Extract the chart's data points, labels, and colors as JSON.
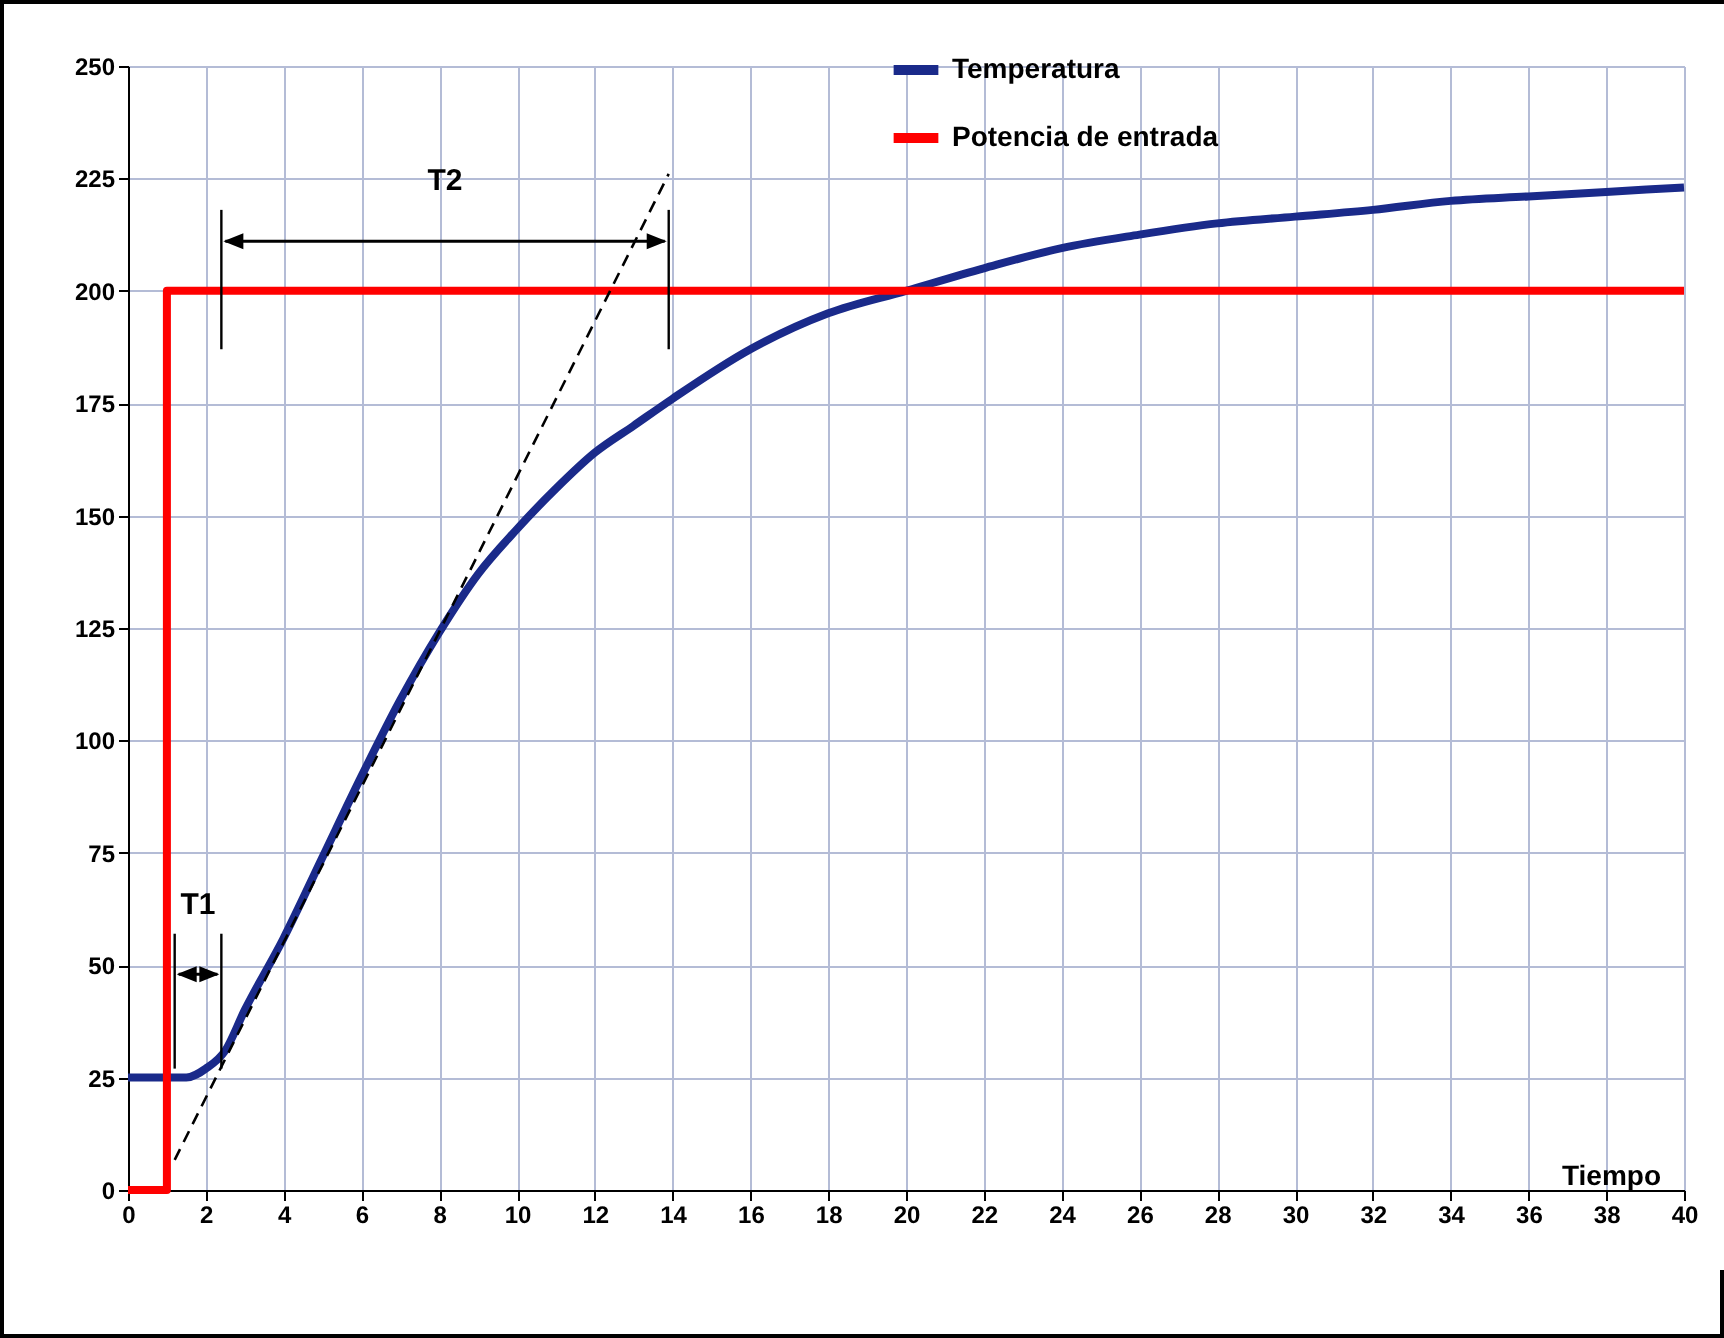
{
  "chart_data": {
    "type": "line",
    "xlabel": "Tiempo",
    "xlim": [
      0,
      40
    ],
    "xticks": [
      0,
      2,
      4,
      6,
      8,
      10,
      12,
      14,
      16,
      18,
      20,
      22,
      24,
      26,
      28,
      30,
      32,
      34,
      36,
      38,
      40
    ],
    "ylim": [
      0,
      250
    ],
    "yticks": [
      0,
      25,
      50,
      75,
      100,
      125,
      150,
      175,
      200,
      225,
      250
    ],
    "grid": true,
    "legend": "top",
    "series": [
      {
        "name": "Temperatura",
        "color": "#1a2a8a",
        "x": [
          0,
          1,
          1.5,
          2,
          2.5,
          3,
          4,
          5,
          6,
          7,
          8,
          9,
          10,
          11,
          12,
          13,
          14,
          16,
          18,
          20,
          22,
          24,
          26,
          28,
          30,
          32,
          34,
          36,
          38,
          40
        ],
        "values": [
          25,
          25,
          25,
          27,
          31,
          40,
          56,
          74,
          92,
          109,
          124,
          137,
          147,
          156,
          164,
          170,
          176,
          187,
          195,
          200,
          205,
          209.5,
          212.5,
          215,
          216.5,
          218,
          220,
          221,
          222,
          223
        ]
      },
      {
        "name": "Potencia de entrada",
        "color": "#ff0000",
        "type": "step",
        "x": [
          0,
          1,
          40
        ],
        "values": [
          0,
          200,
          200
        ]
      },
      {
        "color": "#000000",
        "line_style": "dashed",
        "x": [
          1.2,
          13.9
        ],
        "values": [
          6.7,
          226
        ]
      }
    ],
    "annotations": [
      {
        "text": "T1",
        "x": 2.4,
        "y": 30
      },
      "T2"
    ]
  }
}
